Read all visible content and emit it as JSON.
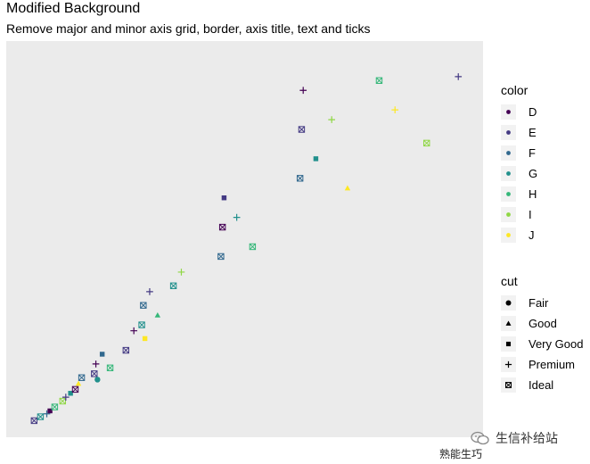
{
  "title": "Modified Background",
  "subtitle": "Remove major and minor axis grid, border, axis title, text and ticks",
  "watermark": "生信补给站",
  "caption": "熟能生巧",
  "chart_data": {
    "type": "scatter",
    "title": "Modified Background",
    "subtitle": "Remove major and minor axis grid, border, axis title, text and ticks",
    "xlabel": "",
    "ylabel": "",
    "grid": false,
    "axis_text": false,
    "xlim": [
      0.2,
      3.1
    ],
    "ylim": [
      300,
      19200
    ],
    "legend_color": {
      "title": "color",
      "levels": [
        "D",
        "E",
        "F",
        "G",
        "H",
        "I",
        "J"
      ],
      "colors": [
        "#440154",
        "#443a83",
        "#31688e",
        "#21908c",
        "#35b779",
        "#8fd744",
        "#fde725"
      ]
    },
    "legend_shape": {
      "title": "cut",
      "levels": [
        "Fair",
        "Good",
        "Very Good",
        "Premium",
        "Ideal"
      ],
      "shapes": [
        "circle",
        "triangle",
        "square",
        "plus",
        "boxed-x"
      ]
    },
    "points": [
      {
        "x": 0.32,
        "y": 600,
        "c": "E",
        "s": "Ideal"
      },
      {
        "x": 0.36,
        "y": 800,
        "c": "G",
        "s": "Ideal"
      },
      {
        "x": 0.4,
        "y": 950,
        "c": "F",
        "s": "Premium"
      },
      {
        "x": 0.42,
        "y": 1100,
        "c": "D",
        "s": "Very Good"
      },
      {
        "x": 0.45,
        "y": 1300,
        "c": "H",
        "s": "Ideal"
      },
      {
        "x": 0.5,
        "y": 1600,
        "c": "I",
        "s": "Ideal"
      },
      {
        "x": 0.52,
        "y": 1800,
        "c": "E",
        "s": "Premium"
      },
      {
        "x": 0.55,
        "y": 2000,
        "c": "G",
        "s": "Very Good"
      },
      {
        "x": 0.58,
        "y": 2200,
        "c": "D",
        "s": "Ideal"
      },
      {
        "x": 0.6,
        "y": 2500,
        "c": "J",
        "s": "Good"
      },
      {
        "x": 0.62,
        "y": 2800,
        "c": "F",
        "s": "Ideal"
      },
      {
        "x": 0.7,
        "y": 3000,
        "c": "E",
        "s": "Ideal"
      },
      {
        "x": 0.71,
        "y": 3500,
        "c": "D",
        "s": "Premium"
      },
      {
        "x": 0.72,
        "y": 2700,
        "c": "G",
        "s": "Fair"
      },
      {
        "x": 0.75,
        "y": 4000,
        "c": "F",
        "s": "Very Good"
      },
      {
        "x": 0.8,
        "y": 3300,
        "c": "H",
        "s": "Ideal"
      },
      {
        "x": 0.9,
        "y": 4200,
        "c": "E",
        "s": "Ideal"
      },
      {
        "x": 0.95,
        "y": 5200,
        "c": "D",
        "s": "Premium"
      },
      {
        "x": 1.0,
        "y": 5500,
        "c": "G",
        "s": "Ideal"
      },
      {
        "x": 1.01,
        "y": 6500,
        "c": "F",
        "s": "Ideal"
      },
      {
        "x": 1.02,
        "y": 4800,
        "c": "J",
        "s": "Very Good"
      },
      {
        "x": 1.05,
        "y": 7200,
        "c": "E",
        "s": "Premium"
      },
      {
        "x": 1.1,
        "y": 6000,
        "c": "H",
        "s": "Good"
      },
      {
        "x": 1.2,
        "y": 7500,
        "c": "G",
        "s": "Ideal"
      },
      {
        "x": 1.25,
        "y": 8200,
        "c": "I",
        "s": "Premium"
      },
      {
        "x": 1.5,
        "y": 9000,
        "c": "F",
        "s": "Ideal"
      },
      {
        "x": 1.51,
        "y": 10500,
        "c": "D",
        "s": "Ideal"
      },
      {
        "x": 1.52,
        "y": 12000,
        "c": "E",
        "s": "Very Good"
      },
      {
        "x": 1.6,
        "y": 11000,
        "c": "G",
        "s": "Premium"
      },
      {
        "x": 1.7,
        "y": 9500,
        "c": "H",
        "s": "Ideal"
      },
      {
        "x": 2.0,
        "y": 13000,
        "c": "F",
        "s": "Ideal"
      },
      {
        "x": 2.01,
        "y": 15500,
        "c": "E",
        "s": "Ideal"
      },
      {
        "x": 2.02,
        "y": 17500,
        "c": "D",
        "s": "Premium"
      },
      {
        "x": 2.1,
        "y": 14000,
        "c": "G",
        "s": "Very Good"
      },
      {
        "x": 2.2,
        "y": 16000,
        "c": "I",
        "s": "Premium"
      },
      {
        "x": 2.3,
        "y": 12500,
        "c": "J",
        "s": "Good"
      },
      {
        "x": 2.5,
        "y": 18000,
        "c": "H",
        "s": "Ideal"
      },
      {
        "x": 2.6,
        "y": 16500,
        "c": "J",
        "s": "Premium"
      },
      {
        "x": 2.8,
        "y": 14800,
        "c": "I",
        "s": "Ideal"
      },
      {
        "x": 3.0,
        "y": 18200,
        "c": "E",
        "s": "Premium"
      }
    ]
  }
}
